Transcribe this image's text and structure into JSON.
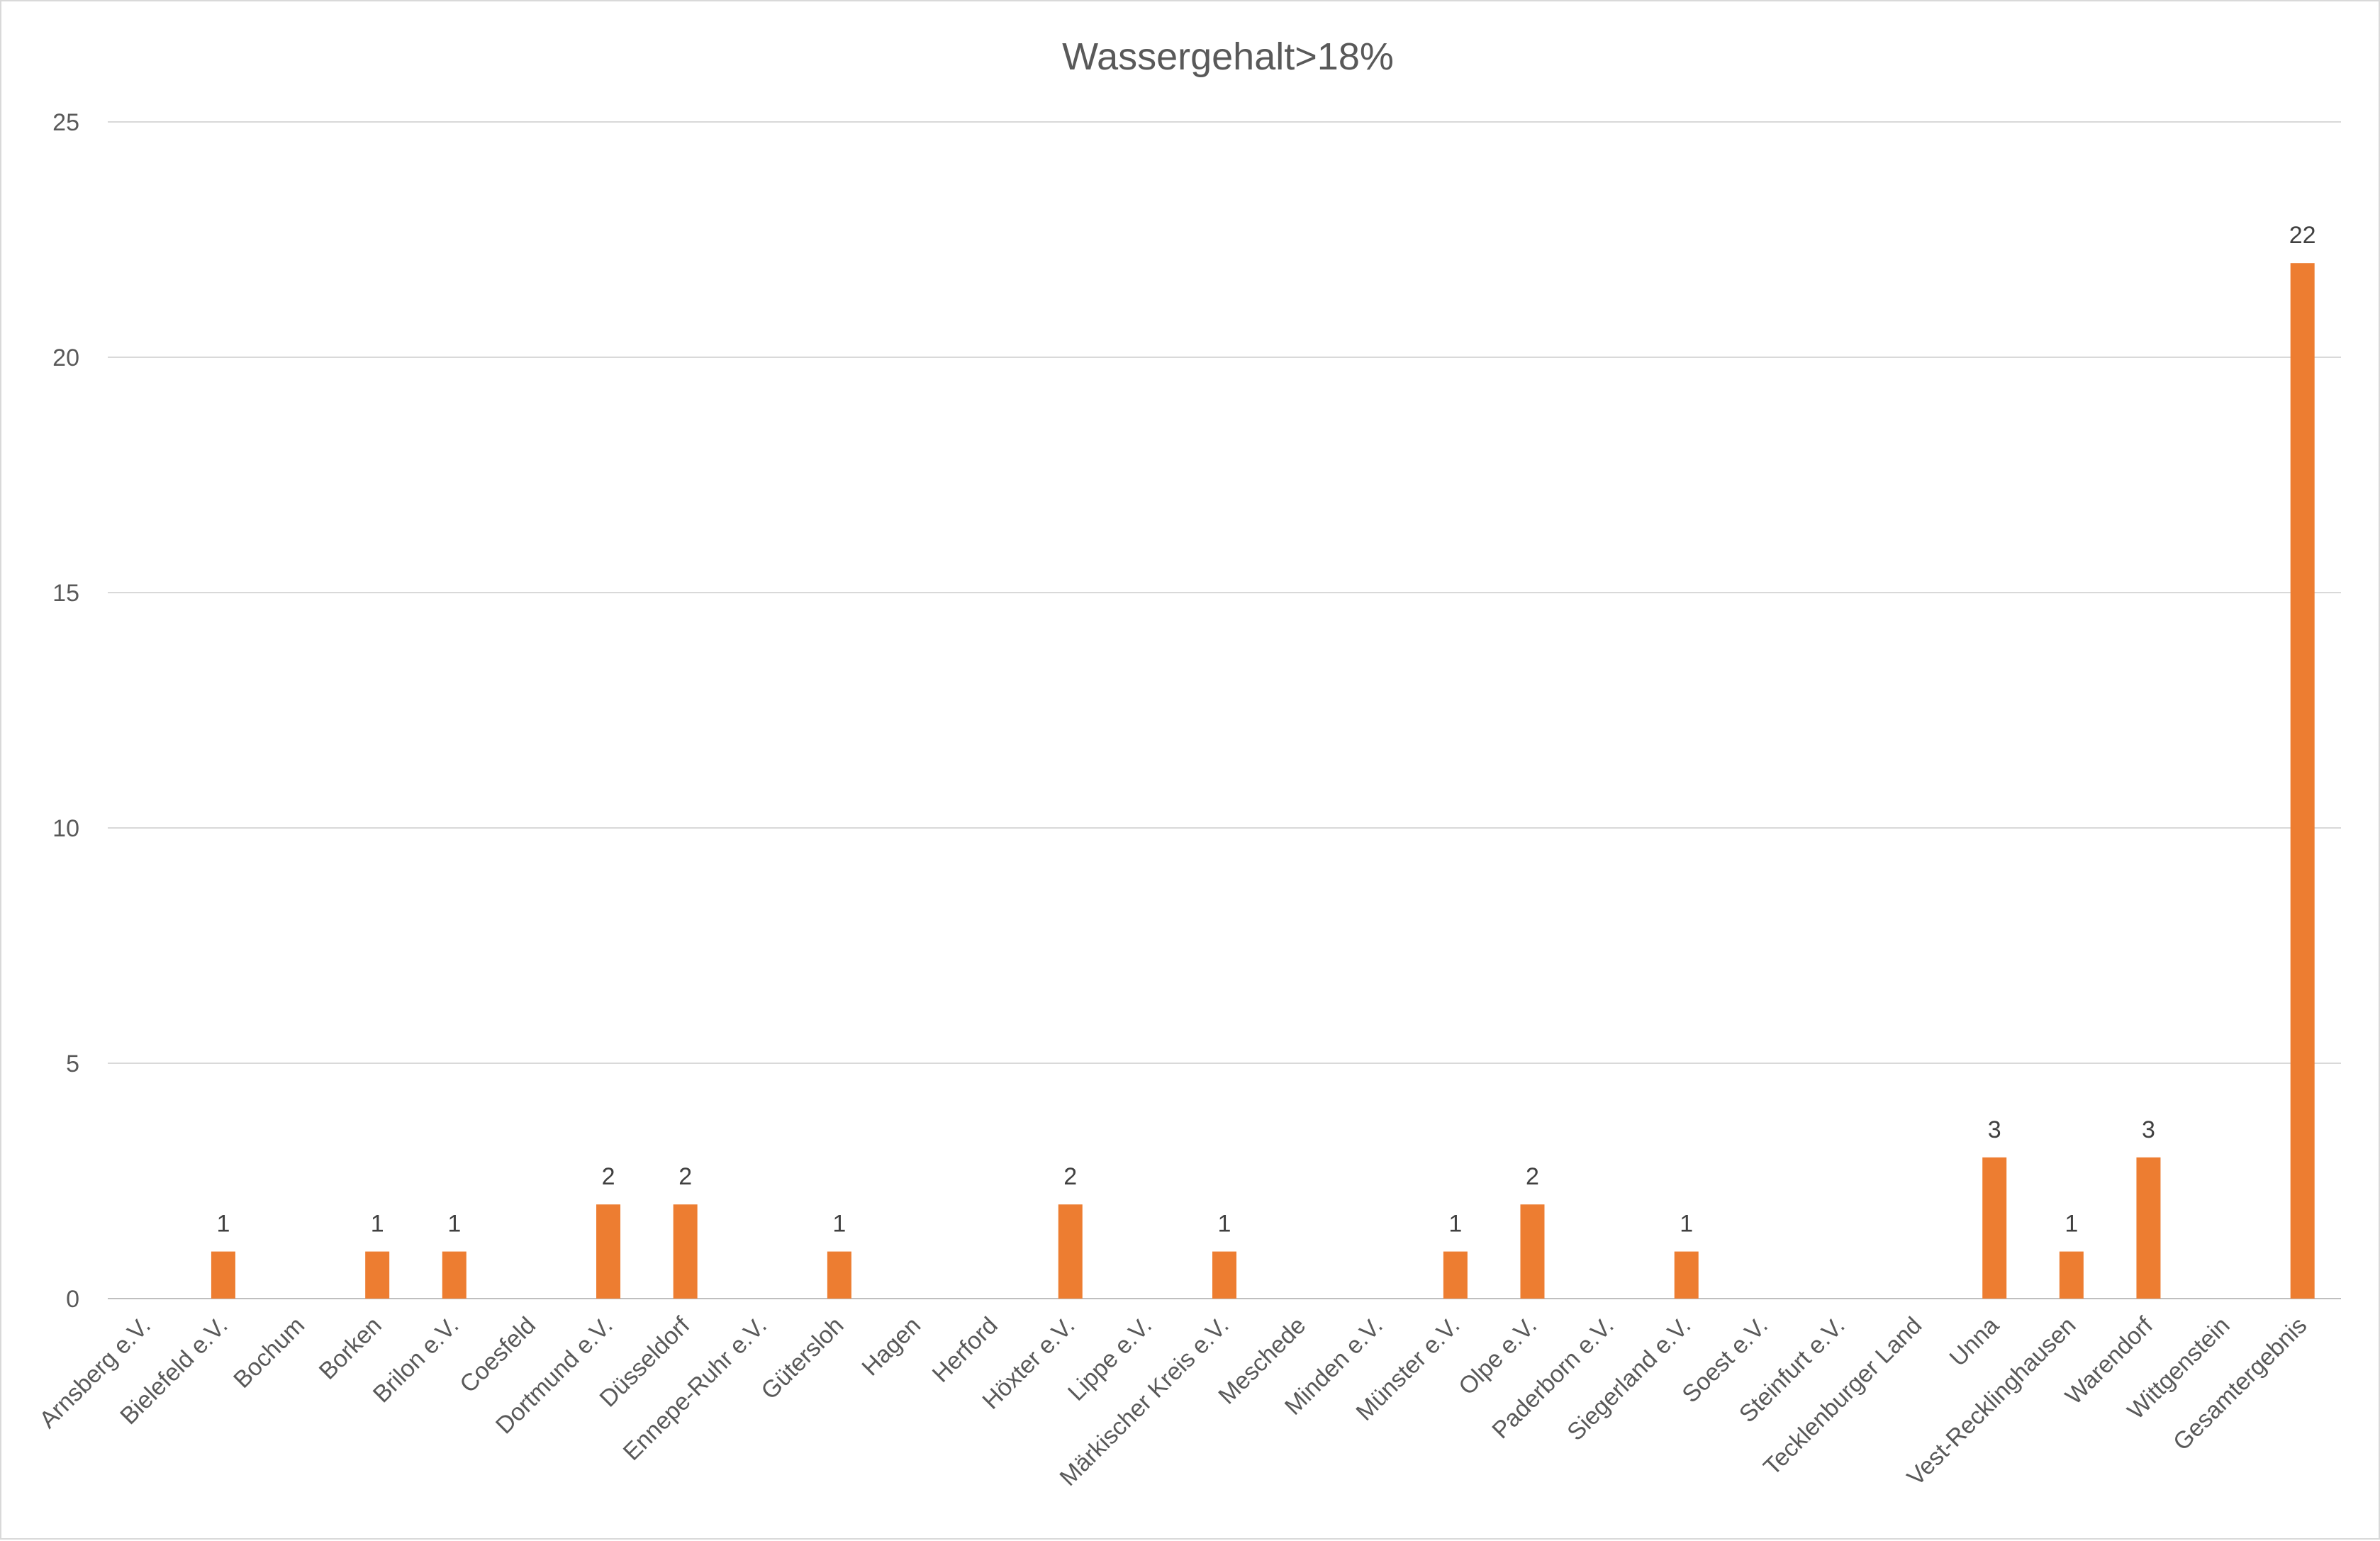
{
  "chart_data": {
    "type": "bar",
    "title": "Wassergehalt>18%",
    "xlabel": "",
    "ylabel": "",
    "ylim": [
      0,
      25
    ],
    "yticks": [
      0,
      5,
      10,
      15,
      20,
      25
    ],
    "grid": true,
    "legend": "none",
    "bar_color": "#ED7D31",
    "categories": [
      "Arnsberg e.V.",
      "Bielefeld e.V.",
      "Bochum",
      "Borken",
      "Brilon e.V.",
      "Coesfeld",
      "Dortmund e.V.",
      "Düsseldorf",
      "Ennepe-Ruhr e.V.",
      "Gütersloh",
      "Hagen",
      "Herford",
      "Höxter e.V.",
      "Lippe e.V.",
      "Märkischer Kreis e.V.",
      "Meschede",
      "Minden e.V.",
      "Münster e.V.",
      "Olpe e.V.",
      "Paderborn e.V.",
      "Siegerland e.V.",
      "Soest e.V.",
      "Steinfurt e.V.",
      "Tecklenburger Land",
      "Unna",
      "Vest-Recklinghausen",
      "Warendorf",
      "Wittgenstein",
      "Gesamtergebnis"
    ],
    "values": [
      null,
      1,
      null,
      1,
      1,
      null,
      2,
      2,
      null,
      1,
      null,
      null,
      2,
      null,
      1,
      null,
      null,
      1,
      2,
      null,
      1,
      null,
      null,
      null,
      3,
      1,
      3,
      null,
      22
    ]
  }
}
